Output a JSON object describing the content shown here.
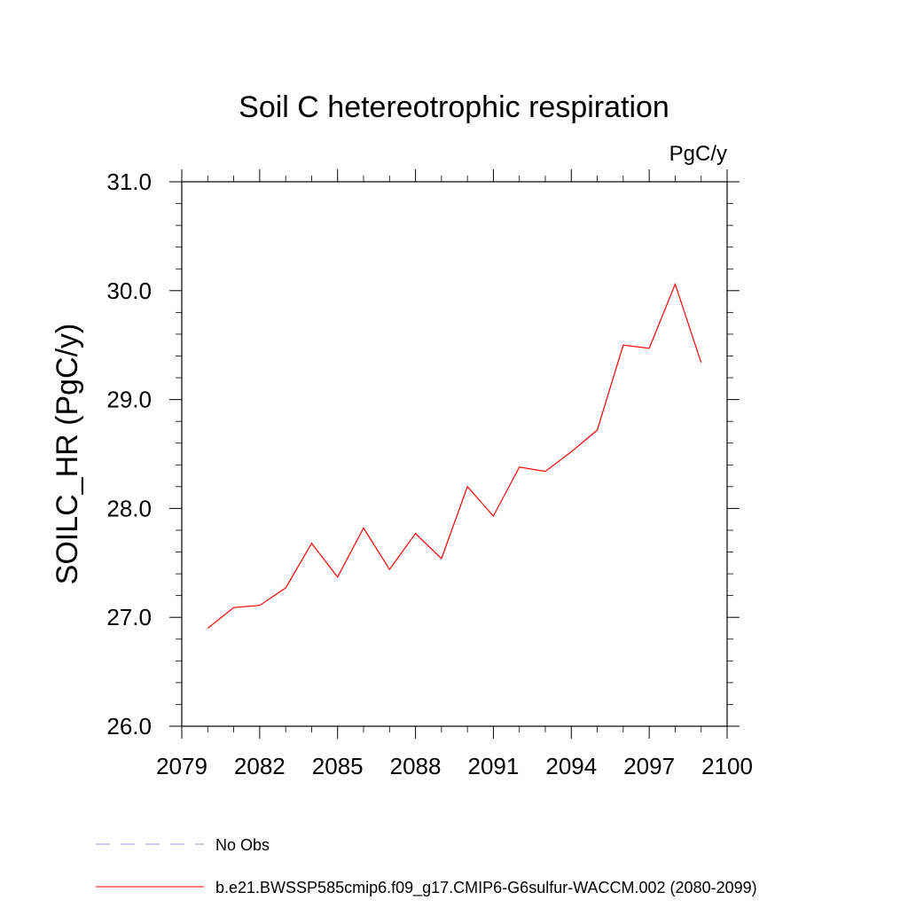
{
  "chart_data": {
    "type": "line",
    "title": "Soil C hetereotrophic respiration",
    "units_label": "PgC/y",
    "ylabel": "SOILC_HR  (PgC/y)",
    "xlabel": "",
    "xlim": [
      2079,
      2100
    ],
    "ylim": [
      26.0,
      31.0
    ],
    "x_ticks": [
      2079,
      2082,
      2085,
      2088,
      2091,
      2094,
      2097,
      2100
    ],
    "x_tick_labels": [
      "2079",
      "2082",
      "2085",
      "2088",
      "2091",
      "2094",
      "2097",
      "2100"
    ],
    "y_ticks": [
      26.0,
      27.0,
      28.0,
      29.0,
      30.0,
      31.0
    ],
    "y_tick_labels": [
      "26.0",
      "27.0",
      "28.0",
      "29.0",
      "30.0",
      "31.0"
    ],
    "grid": false,
    "legend_placement": "bottom",
    "series": [
      {
        "name": "No Obs",
        "color": "#9999dd",
        "dash": true,
        "x": [],
        "y": []
      },
      {
        "name": "b.e21.BWSSP585cmip6.f09_g17.CMIP6-G6sulfur-WACCM.002 (2080-2099)",
        "color": "#ff0000",
        "dash": false,
        "x": [
          2080,
          2081,
          2082,
          2083,
          2084,
          2085,
          2086,
          2087,
          2088,
          2089,
          2090,
          2091,
          2092,
          2093,
          2094,
          2095,
          2096,
          2097,
          2098,
          2099
        ],
        "y": [
          26.9,
          27.09,
          27.11,
          27.27,
          27.68,
          27.37,
          27.82,
          27.44,
          27.77,
          27.54,
          28.2,
          27.93,
          28.38,
          28.34,
          28.52,
          28.72,
          29.5,
          29.47,
          30.06,
          29.34
        ]
      }
    ]
  }
}
